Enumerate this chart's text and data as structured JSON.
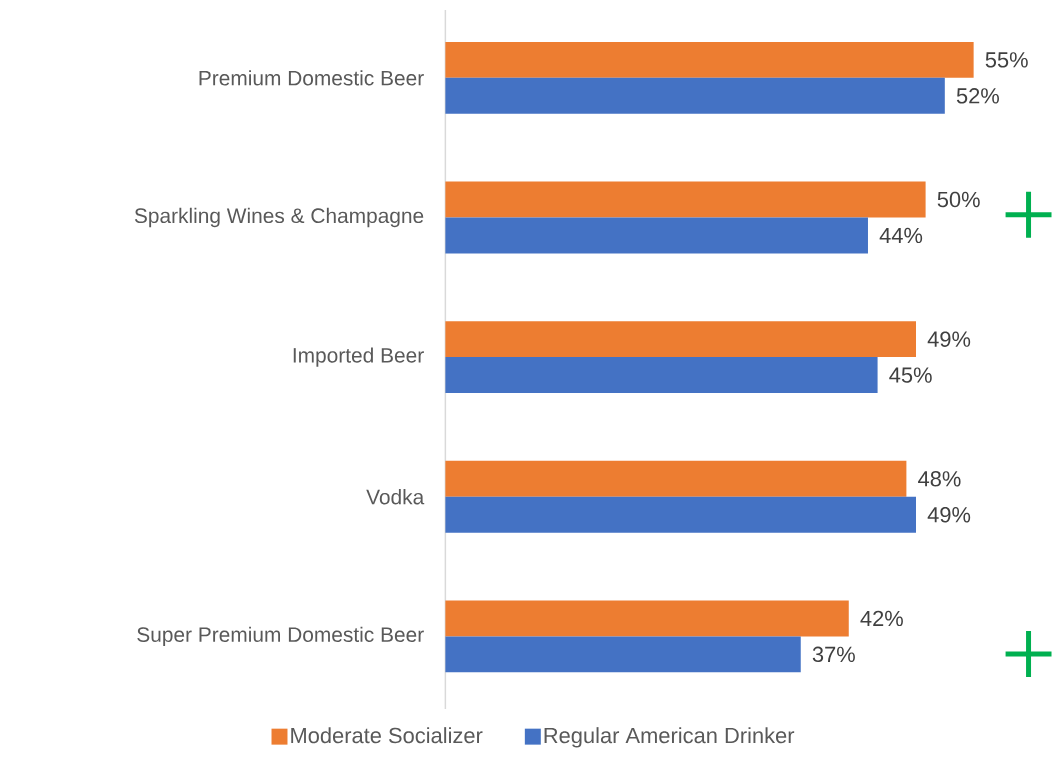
{
  "chart_data": {
    "type": "bar",
    "orientation": "horizontal",
    "categories": [
      "Premium Domestic Beer",
      "Sparkling Wines & Champagne",
      "Imported Beer",
      "Vodka",
      "Super Premium Domestic Beer"
    ],
    "series": [
      {
        "name": "Moderate Socializer",
        "color": "#ed7d31",
        "values": [
          55,
          50,
          49,
          48,
          42
        ],
        "value_labels": [
          "55%",
          "50%",
          "49%",
          "48%",
          "42%"
        ]
      },
      {
        "name": "Regular American Drinker",
        "color": "#4472c4",
        "values": [
          52,
          44,
          45,
          49,
          37
        ],
        "value_labels": [
          "52%",
          "44%",
          "45%",
          "49%",
          "37%"
        ]
      }
    ],
    "legend": "bottom"
  }
}
